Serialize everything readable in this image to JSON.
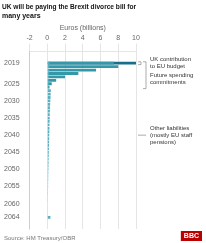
{
  "chart_data": {
    "type": "bar",
    "orientation": "horizontal",
    "stacked": false,
    "title": "UK will be paying the Brexit divorce bill for\nmany years",
    "xlabel": "Euros (billions)",
    "source": "Source: HM Treasury/OBR",
    "logo": "BBC",
    "categories": [
      2019,
      2020,
      2021,
      2022,
      2023,
      2024,
      2025,
      2026,
      2027,
      2028,
      2029,
      2030,
      2031,
      2032,
      2033,
      2034,
      2035,
      2036,
      2037,
      2038,
      2039,
      2040,
      2041,
      2042,
      2043,
      2044,
      2045,
      2046,
      2047,
      2048,
      2049,
      2050,
      2051,
      2052,
      2053,
      2054,
      2055,
      2056,
      2057,
      2058,
      2059,
      2060,
      2061,
      2062,
      2063,
      2064
    ],
    "series": [
      {
        "color": "#1a6e8a",
        "values": [
          10.0,
          0,
          0,
          0,
          0,
          0,
          0,
          0,
          0,
          0,
          0,
          0,
          0,
          0,
          0,
          0,
          0,
          0,
          0,
          0,
          0,
          0,
          0,
          0,
          0,
          0,
          0,
          0,
          0,
          0,
          0,
          0,
          0,
          0,
          0,
          0,
          0,
          0,
          0,
          0,
          0,
          0,
          0,
          0,
          0,
          0
        ]
      },
      {
        "color": "#3498a8",
        "values": [
          7.5,
          8.0,
          5.5,
          3.5,
          2.0,
          1.0,
          0.5,
          0.25,
          0,
          0,
          0,
          0,
          0,
          0,
          0,
          0,
          0,
          0,
          0,
          0,
          0,
          0,
          0,
          0,
          0,
          0,
          0,
          0,
          0,
          0,
          0,
          0,
          0,
          0,
          0,
          0,
          0,
          0,
          0,
          0,
          0,
          0,
          0,
          0,
          0,
          0
        ]
      },
      {
        "color": "#5ab0c0",
        "values": [
          0.25,
          0.22,
          0.2,
          0.18,
          0.17,
          0.16,
          0.15,
          0.14,
          0.4,
          0.38,
          0.36,
          0.34,
          0.32,
          0.3,
          0.29,
          0.28,
          0.27,
          0.26,
          0.25,
          0.24,
          0.23,
          0.22,
          0.21,
          0.2,
          0.19,
          0.18,
          0.17,
          0.16,
          0.15,
          0.14,
          0.13,
          0.12,
          0.11,
          0.1,
          0.1,
          0.09,
          0.09,
          0.08,
          0.08,
          0.07,
          0.07,
          0.06,
          0.06,
          0.05,
          0.05,
          0.35
        ]
      }
    ],
    "xlim": [
      -2,
      10
    ],
    "xticks": [
      -2,
      0,
      2,
      4,
      6,
      8,
      10
    ],
    "ylim": [
      2064.8,
      2018.2
    ],
    "yticks": [
      2019,
      2025,
      2030,
      2035,
      2040,
      2045,
      2050,
      2055,
      2060,
      2064
    ],
    "grid": true,
    "annotations": [
      {
        "text": "UK contribution\nto EU budget",
        "from": 2019,
        "to": 2019
      },
      {
        "text": "Future spending\ncommitments",
        "from": 2019,
        "to": 2026
      },
      {
        "text": "Other liabilities\n(mostly EU staff\npensions)",
        "at": 2040
      }
    ]
  }
}
